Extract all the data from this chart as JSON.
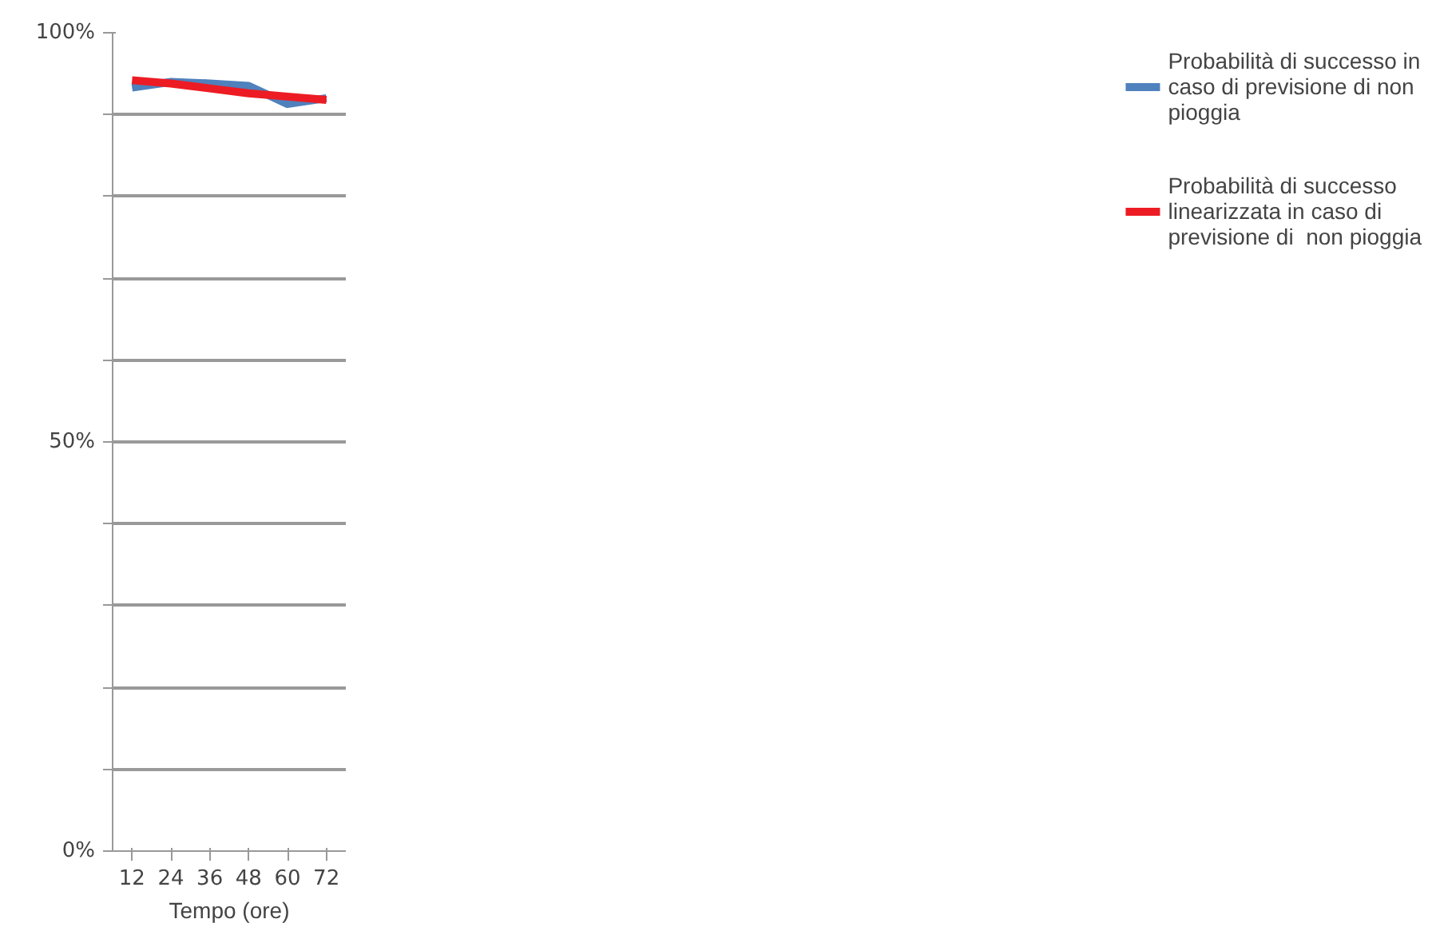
{
  "chart_data": {
    "type": "line",
    "xlabel": "Tempo (ore)",
    "categories": [
      "12",
      "24",
      "36",
      "48",
      "60",
      "72"
    ],
    "series": [
      {
        "name": "Probabilità di successo in caso di previsione di non pioggia",
        "color": "#4f81bd",
        "values": [
          93.3,
          94,
          93.8,
          93.5,
          91.3,
          92
        ]
      },
      {
        "name": "Probabilità di successo linearizzata in caso di previsione di  non pioggia",
        "color": "#ed1c24",
        "values": [
          94.2,
          93.8,
          93.2,
          92.6,
          92.2,
          91.8
        ]
      }
    ],
    "ylim": [
      0,
      100
    ],
    "yticks": [
      {
        "value": 0,
        "label": "0%"
      },
      {
        "value": 10,
        "label": null
      },
      {
        "value": 20,
        "label": null
      },
      {
        "value": 30,
        "label": null
      },
      {
        "value": 40,
        "label": null
      },
      {
        "value": 50,
        "label": "50%"
      },
      {
        "value": 60,
        "label": null
      },
      {
        "value": 70,
        "label": null
      },
      {
        "value": 80,
        "label": null
      },
      {
        "value": 90,
        "label": null
      },
      {
        "value": 100,
        "label": "100%"
      }
    ],
    "grid": "y",
    "legend": "right",
    "marker": "none",
    "line_style": "solid"
  }
}
